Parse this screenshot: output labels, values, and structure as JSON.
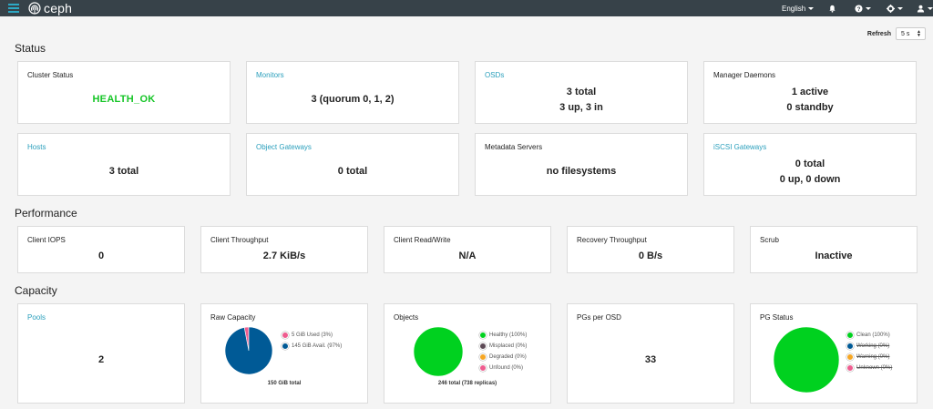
{
  "navbar": {
    "brand": "ceph",
    "language": "English",
    "icons": [
      "menu-icon",
      "ceph-logo-icon",
      "bell-icon",
      "help-icon",
      "gear-icon",
      "user-icon"
    ]
  },
  "refresh": {
    "label": "Refresh",
    "value": "5 s"
  },
  "sections": {
    "status": "Status",
    "performance": "Performance",
    "capacity": "Capacity"
  },
  "status": {
    "cluster_status": {
      "title": "Cluster Status",
      "value": "HEALTH_OK"
    },
    "monitors": {
      "title": "Monitors",
      "value": "3 (quorum 0, 1, 2)"
    },
    "osds": {
      "title": "OSDs",
      "line1": "3 total",
      "line2": "3 up, 3 in"
    },
    "manager": {
      "title": "Manager Daemons",
      "line1": "1 active",
      "line2": "0 standby"
    },
    "hosts": {
      "title": "Hosts",
      "value": "3 total"
    },
    "object_gateways": {
      "title": "Object Gateways",
      "value": "0 total"
    },
    "metadata_servers": {
      "title": "Metadata Servers",
      "value": "no filesystems"
    },
    "iscsi": {
      "title": "iSCSI Gateways",
      "line1": "0 total",
      "line2": "0 up, 0 down"
    }
  },
  "performance": {
    "client_iops": {
      "title": "Client IOPS",
      "value": "0"
    },
    "client_throughput": {
      "title": "Client Throughput",
      "value": "2.7 KiB/s"
    },
    "client_rw": {
      "title": "Client Read/Write",
      "value": "N/A"
    },
    "recovery": {
      "title": "Recovery Throughput",
      "value": "0 B/s"
    },
    "scrub": {
      "title": "Scrub",
      "value": "Inactive"
    }
  },
  "capacity": {
    "pools": {
      "title": "Pools",
      "value": "2"
    },
    "raw_capacity": {
      "title": "Raw Capacity",
      "legend": [
        "5 GiB Used (3%)",
        "145 GiB Avail. (97%)"
      ],
      "footer": "150 GiB total"
    },
    "objects": {
      "title": "Objects",
      "legend": [
        "Healthy (100%)",
        "Misplaced (0%)",
        "Degraded (0%)",
        "Unfound (0%)"
      ],
      "footer": "246 total (738 replicas)"
    },
    "pgs_per_osd": {
      "title": "PGs per OSD",
      "value": "33"
    },
    "pg_status": {
      "title": "PG Status",
      "legend": [
        "Clean (100%)",
        "Working (0%)",
        "Warning (0%)",
        "Unknown (0%)"
      ]
    }
  },
  "chart_data": [
    {
      "type": "pie",
      "title": "Raw Capacity",
      "categories": [
        "5 GiB Used (3%)",
        "145 GiB Avail. (97%)"
      ],
      "values": [
        3,
        97
      ],
      "colors": [
        "#ef5c8f",
        "#005a96"
      ]
    },
    {
      "type": "pie",
      "title": "Objects",
      "categories": [
        "Healthy (100%)",
        "Misplaced (0%)",
        "Degraded (0%)",
        "Unfound (0%)"
      ],
      "values": [
        100,
        0,
        0,
        0
      ],
      "colors": [
        "#00d11f",
        "#5d4a56",
        "#f6a623",
        "#ef5c8f"
      ]
    },
    {
      "type": "pie",
      "title": "PG Status",
      "categories": [
        "Clean (100%)",
        "Working (0%)",
        "Warning (0%)",
        "Unknown (0%)"
      ],
      "values": [
        100,
        0,
        0,
        0
      ],
      "colors": [
        "#00d11f",
        "#005a96",
        "#f6a623",
        "#ef5c8f"
      ]
    }
  ]
}
